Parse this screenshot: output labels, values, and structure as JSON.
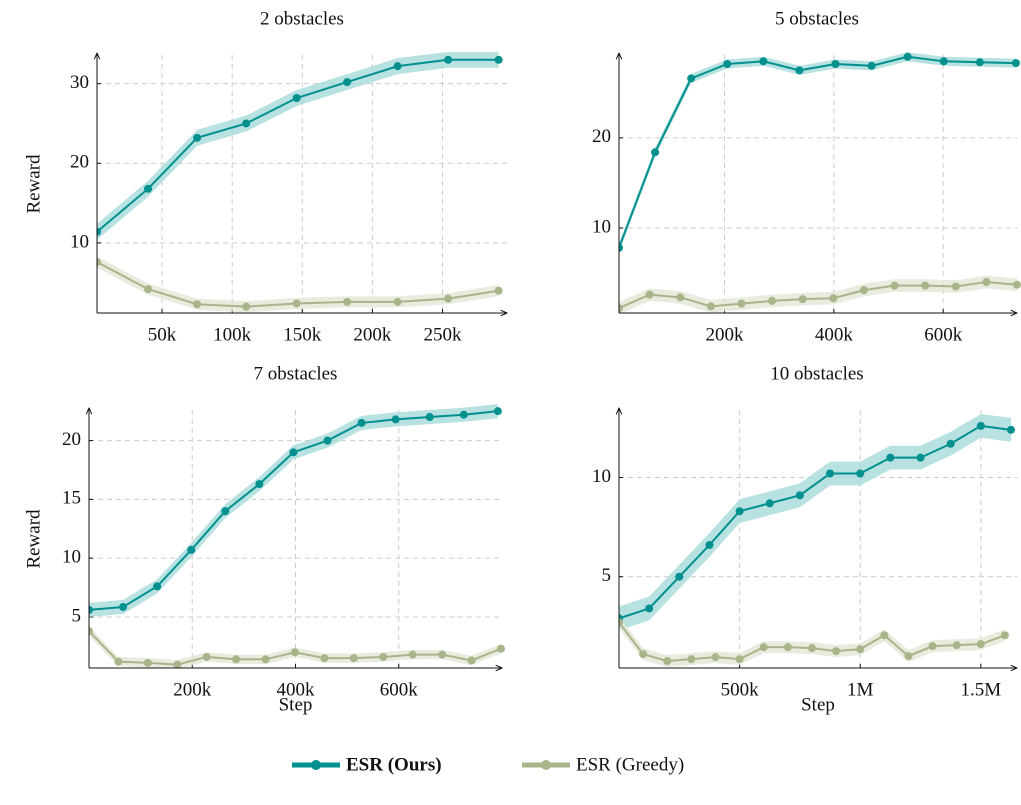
{
  "chart_data": [
    {
      "type": "line",
      "title": "2 obstacles",
      "ylabel": "Reward",
      "xlim": [
        3600,
        296000
      ],
      "ylim": [
        1.2,
        33.6
      ],
      "xticks": [
        {
          "value": 50000,
          "label": "50k"
        },
        {
          "value": 100000,
          "label": "100k"
        },
        {
          "value": 150000,
          "label": "150k"
        },
        {
          "value": 200000,
          "label": "200k"
        },
        {
          "value": 250000,
          "label": "250k"
        }
      ],
      "yticks": [
        10,
        20,
        30
      ],
      "grid": true,
      "series": [
        {
          "name": "ESR (Ours)",
          "color": "#00918f",
          "band_color": "#a6d9d9",
          "error": 1.0,
          "x": [
            3600,
            40000,
            75000,
            110000,
            146000,
            182000,
            218000,
            254000,
            290000
          ],
          "values": [
            11.4,
            16.8,
            23.2,
            25,
            28.2,
            30.2,
            32.2,
            33,
            33
          ]
        },
        {
          "name": "ESR (Greedy)",
          "color": "#a8b58a",
          "band_color": "#e2e6d4",
          "error": 0.7,
          "x": [
            3600,
            40000,
            75000,
            110000,
            146000,
            182000,
            218000,
            254000,
            290000
          ],
          "values": [
            7.6,
            4.2,
            2.3,
            2.0,
            2.4,
            2.6,
            2.6,
            3.0,
            4.0
          ]
        }
      ]
    },
    {
      "type": "line",
      "title": "5 obstacles",
      "xlim": [
        7000,
        735000
      ],
      "ylim": [
        0.56,
        29.2
      ],
      "xticks": [
        {
          "value": 200000,
          "label": "200k"
        },
        {
          "value": 400000,
          "label": "400k"
        },
        {
          "value": 600000,
          "label": "600k"
        }
      ],
      "yticks": [
        10,
        20
      ],
      "grid": true,
      "series": [
        {
          "name": "ESR (Ours)",
          "color": "#00918f",
          "band_color": "#a6d9d9",
          "error": 0.5,
          "x": [
            7000,
            73000,
            139000,
            205000,
            271000,
            337000,
            403000,
            469000,
            535000,
            601000,
            667000,
            733000
          ],
          "values": [
            7.8,
            18.4,
            26.6,
            28.2,
            28.5,
            27.5,
            28.2,
            28,
            29,
            28.5,
            28.4,
            28.3
          ]
        },
        {
          "name": "ESR (Greedy)",
          "color": "#a8b58a",
          "band_color": "#e2e6d4",
          "error": 0.7,
          "x": [
            7000,
            63000,
            119000,
            175000,
            231000,
            287000,
            343000,
            399000,
            455000,
            511000,
            567000,
            623000,
            679000,
            735000
          ],
          "values": [
            1.1,
            2.6,
            2.3,
            1.3,
            1.6,
            1.9,
            2.1,
            2.2,
            3.1,
            3.6,
            3.6,
            3.5,
            4.0,
            3.7
          ]
        }
      ]
    },
    {
      "type": "line",
      "title": "7 obstacles",
      "ylabel": "Reward",
      "xlabel": "Step",
      "xlim": [
        0,
        800000
      ],
      "ylim": [
        0.66,
        22.6
      ],
      "xticks": [
        {
          "value": 200000,
          "label": "200k"
        },
        {
          "value": 400000,
          "label": "400k"
        },
        {
          "value": 600000,
          "label": "600k"
        }
      ],
      "yticks": [
        5,
        10,
        15,
        20
      ],
      "grid": true,
      "series": [
        {
          "name": "ESR (Ours)",
          "color": "#00918f",
          "band_color": "#a6d9d9",
          "error": 0.6,
          "x": [
            0,
            66000,
            132000,
            198000,
            264000,
            330000,
            396000,
            462000,
            528000,
            594000,
            660000,
            726000,
            792000
          ],
          "values": [
            5.6,
            5.85,
            7.6,
            10.7,
            14,
            16.3,
            19,
            20,
            21.5,
            21.8,
            22,
            22.2,
            22.5
          ]
        },
        {
          "name": "ESR (Greedy)",
          "color": "#a8b58a",
          "band_color": "#e2e6d4",
          "error": 0.4,
          "x": [
            0,
            57000,
            114000,
            171000,
            228000,
            285000,
            342000,
            399000,
            456000,
            513000,
            570000,
            627000,
            684000,
            741000,
            798000
          ],
          "values": [
            3.8,
            1.2,
            1.1,
            0.95,
            1.6,
            1.4,
            1.4,
            2.0,
            1.5,
            1.5,
            1.6,
            1.8,
            1.8,
            1.3,
            2.3
          ]
        }
      ]
    },
    {
      "type": "line",
      "title": "10 obstacles",
      "xlabel": "Step",
      "xlim": [
        0,
        1650000
      ],
      "ylim": [
        0.4,
        13.4
      ],
      "xticks": [
        {
          "value": 500000,
          "label": "500k"
        },
        {
          "value": 1000000,
          "label": "1M"
        },
        {
          "value": 1500000,
          "label": "1.5M"
        }
      ],
      "yticks": [
        5,
        10
      ],
      "grid": true,
      "series": [
        {
          "name": "ESR (Ours)",
          "color": "#00918f",
          "band_color": "#a6d9d9",
          "error": 0.6,
          "x": [
            0,
            125000,
            250000,
            375000,
            500000,
            625000,
            750000,
            875000,
            1000000,
            1125000,
            1250000,
            1375000,
            1500000,
            1625000
          ],
          "values": [
            2.9,
            3.4,
            5.0,
            6.6,
            8.3,
            8.7,
            9.1,
            10.2,
            10.2,
            11.0,
            11.0,
            11.7,
            12.6,
            12.4
          ]
        },
        {
          "name": "ESR (Greedy)",
          "color": "#a8b58a",
          "band_color": "#e2e6d4",
          "error": 0.3,
          "x": [
            0,
            100000,
            200000,
            300000,
            400000,
            500000,
            600000,
            700000,
            800000,
            900000,
            1000000,
            1100000,
            1200000,
            1300000,
            1400000,
            1500000,
            1600000
          ],
          "values": [
            2.7,
            1.1,
            0.75,
            0.85,
            0.95,
            0.85,
            1.45,
            1.45,
            1.4,
            1.25,
            1.35,
            2.05,
            1.0,
            1.5,
            1.55,
            1.6,
            2.05
          ]
        }
      ]
    }
  ]
}
